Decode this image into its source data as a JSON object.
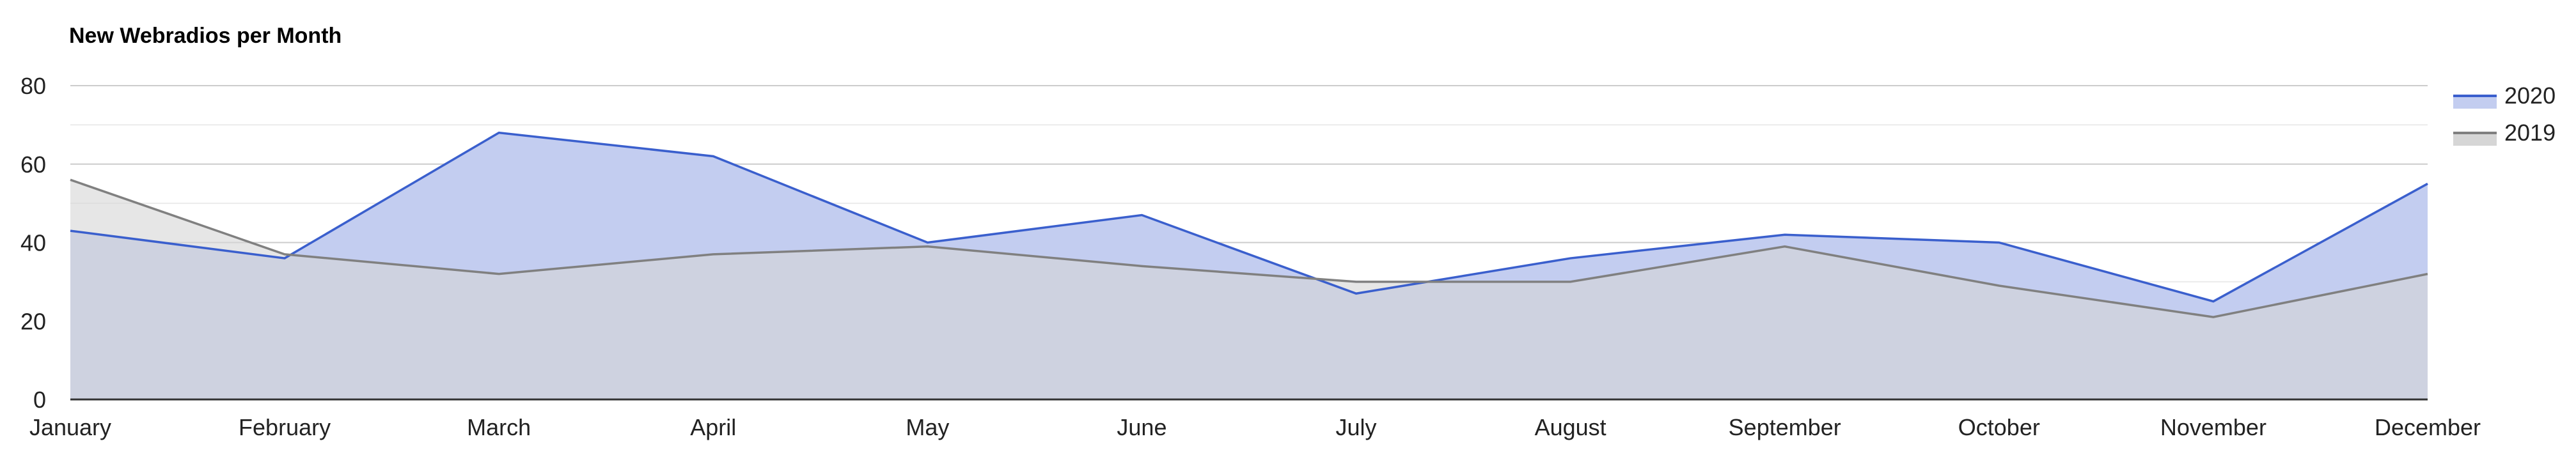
{
  "chart_data": {
    "type": "area",
    "title": "New Webradios per Month",
    "xlabel": "",
    "ylabel": "",
    "ylim": [
      0,
      80
    ],
    "yticks": [
      0,
      20,
      40,
      60,
      80
    ],
    "grid": true,
    "legend_position": "right",
    "categories": [
      "January",
      "February",
      "March",
      "April",
      "May",
      "June",
      "July",
      "August",
      "September",
      "October",
      "November",
      "December"
    ],
    "series": [
      {
        "name": "2020",
        "color": "#3a5fcd",
        "fill": "#c3cdf0",
        "values": [
          43,
          36,
          68,
          62,
          40,
          47,
          27,
          36,
          42,
          40,
          25,
          55
        ]
      },
      {
        "name": "2019",
        "color": "#808080",
        "fill": "#d6d6d6",
        "values": [
          56,
          37,
          32,
          37,
          39,
          34,
          30,
          30,
          39,
          29,
          21,
          32
        ]
      }
    ]
  }
}
